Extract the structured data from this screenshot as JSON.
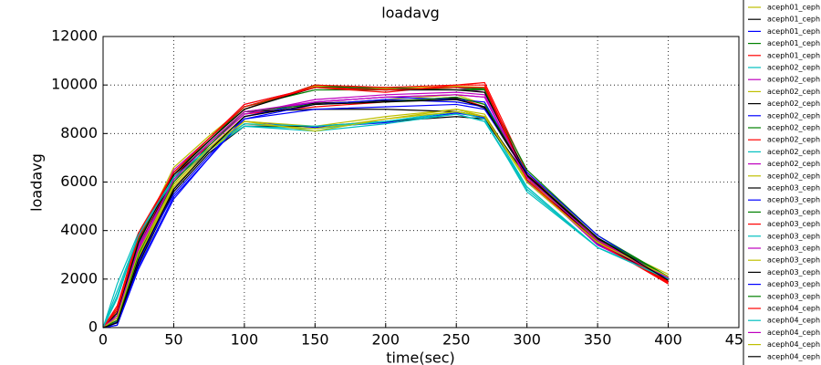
{
  "chart_data": {
    "type": "line",
    "title": "loadavg",
    "x_label": "time(sec)",
    "y_label": "loadavg",
    "x": [
      0,
      10,
      25,
      50,
      75,
      100,
      150,
      200,
      250,
      270,
      300,
      350,
      400
    ],
    "xlim": [
      0,
      450
    ],
    "xticks": [
      0,
      50,
      100,
      150,
      200,
      250,
      300,
      350,
      400,
      450
    ],
    "ylim": [
      0,
      12000
    ],
    "yticks": [
      0,
      2000,
      4000,
      6000,
      8000,
      10000,
      12000
    ],
    "grid": true,
    "legend": "upper right",
    "series": [
      {
        "name": "aceph01_ceph",
        "color": "#bfbf00",
        "values": [
          0,
          600,
          3600,
          6600,
          7900,
          9100,
          9950,
          9850,
          9950,
          9900,
          6100,
          3550,
          2050
        ]
      },
      {
        "name": "aceph01_ceph",
        "color": "#000000",
        "values": [
          0,
          300,
          3100,
          6100,
          7600,
          8900,
          9250,
          9350,
          9450,
          9050,
          6250,
          3650,
          2100
        ]
      },
      {
        "name": "aceph01_ceph",
        "color": "#0000ff",
        "values": [
          0,
          250,
          2700,
          5700,
          7400,
          8500,
          8250,
          8450,
          8850,
          8650,
          6050,
          3450,
          1950
        ]
      },
      {
        "name": "aceph01_ceph",
        "color": "#008000",
        "values": [
          0,
          700,
          3800,
          6400,
          7700,
          9000,
          10000,
          9800,
          9900,
          9850,
          6000,
          3500,
          2000
        ]
      },
      {
        "name": "aceph01_ceph",
        "color": "#ff0000",
        "values": [
          0,
          400,
          3300,
          6300,
          7500,
          8800,
          9100,
          9300,
          9500,
          9100,
          6300,
          3600,
          1800
        ]
      },
      {
        "name": "aceph02_ceph",
        "color": "#00bfbf",
        "values": [
          0,
          1800,
          3900,
          6200,
          7300,
          8400,
          8200,
          8500,
          8900,
          8700,
          5800,
          3300,
          2000
        ]
      },
      {
        "name": "aceph02_ceph",
        "color": "#bf00bf",
        "values": [
          0,
          500,
          3400,
          6500,
          7800,
          9200,
          9900,
          9800,
          9900,
          9700,
          6200,
          3400,
          2100
        ]
      },
      {
        "name": "aceph02_ceph",
        "color": "#bfbf00",
        "values": [
          0,
          300,
          2900,
          5900,
          7400,
          8700,
          9200,
          9400,
          9600,
          9200,
          6400,
          3700,
          2000
        ]
      },
      {
        "name": "aceph02_ceph",
        "color": "#000000",
        "values": [
          0,
          200,
          2600,
          5600,
          7200,
          8300,
          8300,
          8500,
          8700,
          8600,
          6100,
          3500,
          1900
        ]
      },
      {
        "name": "aceph02_ceph",
        "color": "#0000ff",
        "values": [
          0,
          100,
          2500,
          5400,
          7000,
          8700,
          9300,
          9500,
          9400,
          9300,
          6200,
          3600,
          2000
        ]
      },
      {
        "name": "aceph02_ceph",
        "color": "#008000",
        "values": [
          0,
          600,
          3500,
          6400,
          7800,
          9100,
          9900,
          9900,
          9800,
          9800,
          6300,
          3700,
          2050
        ]
      },
      {
        "name": "aceph02_ceph",
        "color": "#ff0000",
        "values": [
          0,
          900,
          3700,
          6300,
          7700,
          9000,
          10000,
          9900,
          10000,
          10100,
          6400,
          3500,
          1850
        ]
      },
      {
        "name": "aceph02_ceph",
        "color": "#00bfbf",
        "values": [
          0,
          1200,
          3800,
          6200,
          7400,
          8300,
          8100,
          8400,
          8800,
          8500,
          5700,
          3300,
          2100
        ]
      },
      {
        "name": "aceph02_ceph",
        "color": "#bf00bf",
        "values": [
          0,
          400,
          3200,
          6000,
          7500,
          8800,
          9300,
          9500,
          9600,
          9500,
          6100,
          3400,
          2000
        ]
      },
      {
        "name": "aceph02_ceph",
        "color": "#bfbf00",
        "values": [
          0,
          300,
          3000,
          5800,
          7300,
          8500,
          8300,
          8700,
          9000,
          8800,
          6000,
          3600,
          2200
        ]
      },
      {
        "name": "aceph03_ceph",
        "color": "#000000",
        "values": [
          0,
          500,
          3300,
          6200,
          7600,
          8900,
          9000,
          9000,
          8900,
          8700,
          6200,
          3500,
          1950
        ]
      },
      {
        "name": "aceph03_ceph",
        "color": "#0000ff",
        "values": [
          0,
          200,
          2800,
          5500,
          7100,
          8600,
          9200,
          9400,
          9300,
          9100,
          6300,
          3700,
          2050
        ]
      },
      {
        "name": "aceph03_ceph",
        "color": "#008000",
        "values": [
          0,
          700,
          3600,
          6300,
          7700,
          9100,
          9800,
          9800,
          9900,
          9800,
          6500,
          3800,
          2100
        ]
      },
      {
        "name": "aceph03_ceph",
        "color": "#ff0000",
        "values": [
          0,
          800,
          3900,
          6400,
          7800,
          9200,
          9900,
          9700,
          10000,
          10000,
          6200,
          3600,
          1900
        ]
      },
      {
        "name": "aceph03_ceph",
        "color": "#00bfbf",
        "values": [
          0,
          1500,
          3800,
          6100,
          7300,
          8300,
          8200,
          8500,
          8900,
          8600,
          5600,
          3300,
          2000
        ]
      },
      {
        "name": "aceph03_ceph",
        "color": "#bf00bf",
        "values": [
          0,
          400,
          3100,
          6000,
          7500,
          8800,
          9400,
          9600,
          9700,
          9600,
          6000,
          3500,
          2050
        ]
      },
      {
        "name": "aceph03_ceph",
        "color": "#bfbf00",
        "values": [
          0,
          300,
          2900,
          5800,
          7300,
          8400,
          8200,
          8600,
          9000,
          8700,
          6100,
          3700,
          2000
        ]
      },
      {
        "name": "aceph03_ceph",
        "color": "#000000",
        "values": [
          0,
          600,
          3500,
          6300,
          7700,
          9000,
          9900,
          9800,
          9800,
          9700,
          6300,
          3600,
          2100
        ]
      },
      {
        "name": "aceph03_ceph",
        "color": "#0000ff",
        "values": [
          0,
          100,
          2400,
          5300,
          7000,
          8600,
          9000,
          9100,
          9200,
          9000,
          6400,
          3800,
          2000
        ]
      },
      {
        "name": "aceph03_ceph",
        "color": "#008000",
        "values": [
          0,
          300,
          3000,
          6000,
          7500,
          8900,
          9200,
          9300,
          9500,
          9200,
          6300,
          3700,
          2100
        ]
      },
      {
        "name": "aceph04_ceph",
        "color": "#ff0000",
        "values": [
          0,
          700,
          3700,
          6400,
          7800,
          9100,
          9900,
          9800,
          9900,
          9900,
          6100,
          3500,
          1800
        ]
      },
      {
        "name": "aceph04_ceph",
        "color": "#00bfbf",
        "values": [
          0,
          1300,
          3800,
          6200,
          7400,
          8400,
          8300,
          8500,
          8800,
          8500,
          5800,
          3300,
          2000
        ]
      },
      {
        "name": "aceph04_ceph",
        "color": "#bf00bf",
        "values": [
          0,
          500,
          3300,
          6100,
          7600,
          8900,
          9300,
          9500,
          9600,
          9500,
          6200,
          3600,
          2050
        ]
      },
      {
        "name": "aceph04_ceph",
        "color": "#bfbf00",
        "values": [
          0,
          400,
          3100,
          5900,
          7400,
          8500,
          8100,
          8600,
          8900,
          8700,
          6000,
          3500,
          2100
        ]
      },
      {
        "name": "aceph04_ceph",
        "color": "#000000",
        "values": [
          0,
          200,
          2800,
          5700,
          7300,
          8700,
          9200,
          9300,
          9400,
          9100,
          6300,
          3700,
          1950
        ]
      }
    ]
  }
}
